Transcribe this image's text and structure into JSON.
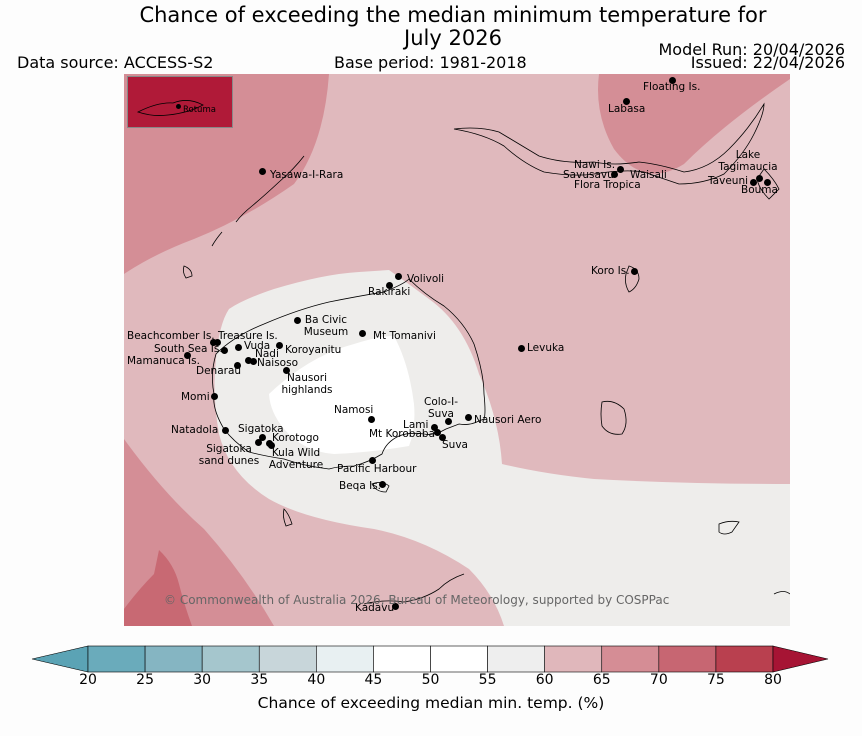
{
  "title": {
    "line1": "Chance of exceeding the median minimum temperature for",
    "line2": "July 2026"
  },
  "header": {
    "data_source": "Data source: ACCESS-S2",
    "base_period": "Base period: 1981-2018",
    "model_run": "Model Run: 20/04/2026",
    "issued": "Issued: 22/04/2026"
  },
  "inset": {
    "label": "Rotuma"
  },
  "places": [
    {
      "id": "floating",
      "name": "Floating Is."
    },
    {
      "id": "labasa",
      "name": "Labasa"
    },
    {
      "id": "yasawa",
      "name": "Yasawa-I-Rara"
    },
    {
      "id": "nawi",
      "name": "Nawi Is."
    },
    {
      "id": "savusavu",
      "name": "Savusavu"
    },
    {
      "id": "waisali",
      "name": "Waisali"
    },
    {
      "id": "flora",
      "name": "Flora Tropica"
    },
    {
      "id": "lake",
      "name": "Lake Tagimaucia"
    },
    {
      "id": "taveuni",
      "name": "Taveuni"
    },
    {
      "id": "bouma",
      "name": "Bouma"
    },
    {
      "id": "volivoli",
      "name": "Volivoli"
    },
    {
      "id": "rakiraki",
      "name": "Rakiraki"
    },
    {
      "id": "koro",
      "name": "Koro Is."
    },
    {
      "id": "bacivic",
      "name": "Ba Civic Museum"
    },
    {
      "id": "beachcomber",
      "name": "Beachcomber Is."
    },
    {
      "id": "treasure",
      "name": "Treasure Is."
    },
    {
      "id": "southsea",
      "name": "South Sea Is."
    },
    {
      "id": "vuda",
      "name": "Vuda"
    },
    {
      "id": "koroyanitu",
      "name": "Koroyanitu"
    },
    {
      "id": "mttomanivi",
      "name": "Mt Tomanivi"
    },
    {
      "id": "mamanuca",
      "name": "Mamanuca Is."
    },
    {
      "id": "nadi",
      "name": "Nadi"
    },
    {
      "id": "naisoso",
      "name": "Naisoso"
    },
    {
      "id": "levuka",
      "name": "Levuka"
    },
    {
      "id": "denarau",
      "name": "Denarau"
    },
    {
      "id": "nausori_hl",
      "name": "Nausori highlands"
    },
    {
      "id": "momi",
      "name": "Momi"
    },
    {
      "id": "namosi",
      "name": "Namosi"
    },
    {
      "id": "colo",
      "name": "Colo-I-Suva"
    },
    {
      "id": "natadola",
      "name": "Natadola"
    },
    {
      "id": "sigatoka",
      "name": "Sigatoka"
    },
    {
      "id": "lami",
      "name": "Lami"
    },
    {
      "id": "nausori_aero",
      "name": "Nausori Aero"
    },
    {
      "id": "mtkorobaba",
      "name": "Mt Korobaba"
    },
    {
      "id": "korotogo",
      "name": "Korotogo"
    },
    {
      "id": "suva",
      "name": "Suva"
    },
    {
      "id": "sigatoka_dunes",
      "name": "Sigatoka sand dunes"
    },
    {
      "id": "kula",
      "name": "Kula Wild Adventure"
    },
    {
      "id": "pacific",
      "name": "Pacific Harbour"
    },
    {
      "id": "beqa",
      "name": "Beqa Is."
    },
    {
      "id": "kadavu",
      "name": "Kadavu"
    }
  ],
  "copyright": "© Commonwealth of Australia 2026, Bureau of Meteorology, supported by COSPPac",
  "colorbar": {
    "label": "Chance of exceeding median min. temp. (%)",
    "ticks": [
      "20",
      "25",
      "30",
      "35",
      "40",
      "45",
      "50",
      "55",
      "60",
      "65",
      "70",
      "75",
      "80"
    ],
    "colors": [
      "#5ba3b5",
      "#6aabbb",
      "#85b5c2",
      "#a5c6cd",
      "#c8d6da",
      "#e8f0f2",
      "#ffffff",
      "#ffffff",
      "#eeeeee",
      "#e0b7bb",
      "#d58d95",
      "#c76672",
      "#b9404f",
      "#a61434"
    ]
  },
  "legend_bins": [
    {
      "range": "45-55",
      "color": "#ffffff"
    },
    {
      "range": "55-60",
      "color": "#eeedeb"
    },
    {
      "range": "60-65",
      "color": "#e0b9bd"
    },
    {
      "range": "65-70",
      "color": "#d48e96"
    },
    {
      "range": "70-75",
      "color": "#c86973"
    },
    {
      "range": "75-80",
      "color": "#b53e4f"
    },
    {
      "range": ">80",
      "color": "#b01a38"
    }
  ]
}
